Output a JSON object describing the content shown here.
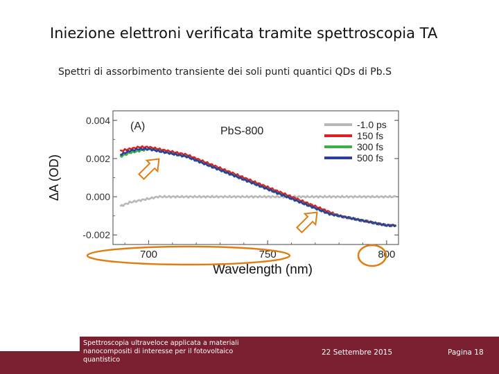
{
  "slide": {
    "title": "Iniezione elettroni verificata tramite spettroscopia TA",
    "subtitle": "Spettri di assorbimento transiente dei soli punti quantici QDs di Pb.S"
  },
  "chart_data": {
    "type": "line",
    "panel_label": "(A)",
    "title": "PbS-800",
    "xlabel": "Wavelength (nm)",
    "ylabel": "ΔA (OD)",
    "xlim": [
      685,
      805
    ],
    "ylim": [
      -0.0025,
      0.0045
    ],
    "xticks": [
      {
        "value": 700,
        "label": "700"
      },
      {
        "value": 750,
        "label": "750"
      },
      {
        "value": 800,
        "label": "800"
      }
    ],
    "yticks": [
      {
        "value": 0.004,
        "label": "0.004"
      },
      {
        "value": 0.002,
        "label": "0.002"
      },
      {
        "value": 0.0,
        "label": "0.000"
      },
      {
        "value": -0.002,
        "label": "-0.002"
      }
    ],
    "x": [
      688,
      692,
      696,
      700,
      704,
      708,
      712,
      716,
      720,
      724,
      728,
      732,
      736,
      740,
      744,
      748,
      752,
      756,
      760,
      764,
      768,
      772,
      776,
      780,
      784,
      788,
      792,
      796,
      800,
      804
    ],
    "series": [
      {
        "name": "-1.0 ps",
        "color": "#b8b8b8",
        "values": [
          -0.0005,
          -0.0003,
          -0.0002,
          -0.0001,
          0.0,
          0.0,
          0.0,
          0.0,
          0.0,
          0.0,
          0.0,
          0.0,
          0.0,
          0.0,
          0.0,
          0.0,
          0.0,
          0.0,
          0.0,
          0.0,
          0.0,
          0.0,
          0.0,
          0.0,
          0.0,
          0.0,
          0.0,
          0.0,
          0.0,
          0.0
        ]
      },
      {
        "name": "150 fs",
        "color": "#e02020",
        "values": [
          0.0024,
          0.0025,
          0.0026,
          0.0026,
          0.0025,
          0.0024,
          0.0023,
          0.0022,
          0.002,
          0.0018,
          0.0016,
          0.0014,
          0.0012,
          0.001,
          0.0008,
          0.0006,
          0.0004,
          0.0002,
          0.0,
          -0.0002,
          -0.0004,
          -0.0006,
          -0.0008,
          -0.001,
          -0.0011,
          -0.0012,
          -0.0013,
          -0.0014,
          -0.0015,
          -0.0015
        ]
      },
      {
        "name": "300 fs",
        "color": "#3cb043",
        "values": [
          0.0021,
          0.0023,
          0.0024,
          0.0025,
          0.0024,
          0.0023,
          0.0022,
          0.0021,
          0.0019,
          0.0017,
          0.0015,
          0.0013,
          0.0011,
          0.0009,
          0.0007,
          0.0005,
          0.0003,
          0.0001,
          -0.0001,
          -0.0003,
          -0.0005,
          -0.0007,
          -0.0009,
          -0.001,
          -0.0011,
          -0.0012,
          -0.0013,
          -0.0014,
          -0.0015,
          -0.0015
        ]
      },
      {
        "name": "500 fs",
        "color": "#2a3f9e",
        "values": [
          0.0022,
          0.0024,
          0.0025,
          0.0025,
          0.0024,
          0.0023,
          0.0022,
          0.0021,
          0.0019,
          0.0017,
          0.0015,
          0.0013,
          0.0011,
          0.0009,
          0.0007,
          0.0005,
          0.0003,
          0.0001,
          -0.0001,
          -0.0003,
          -0.0005,
          -0.0007,
          -0.0009,
          -0.001,
          -0.0011,
          -0.0012,
          -0.0013,
          -0.0014,
          -0.0015,
          -0.0015
        ]
      }
    ],
    "legend": "top-right",
    "annotations": {
      "arrows": 2,
      "highlight_color": "#e07d10"
    }
  },
  "footer": {
    "course": "Spettroscopia ultraveloce applicata a materiali nanocompositi di interesse per il fotovoltaico quantistico",
    "date": "22 Settembre 2015",
    "page": "Pagina 18"
  }
}
